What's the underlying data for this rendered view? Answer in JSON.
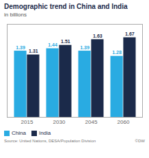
{
  "chart_data": {
    "type": "bar",
    "title": "Demographic trend in China and India",
    "subtitle": "in billions",
    "categories": [
      "2015",
      "2030",
      "2045",
      "2060"
    ],
    "series": [
      {
        "name": "China",
        "color": "#29ABE2",
        "values": [
          1.39,
          1.44,
          1.39,
          1.28
        ]
      },
      {
        "name": "India",
        "color": "#1B2A4A",
        "values": [
          1.31,
          1.51,
          1.63,
          1.67
        ]
      }
    ],
    "ylim": [
      0,
      1.95
    ],
    "data_labels": true,
    "tick_labels": "x",
    "grid": false,
    "legend": "lower left",
    "annotations": [
      "Source: United Nations, DESA/Population Division",
      "©DW"
    ]
  }
}
